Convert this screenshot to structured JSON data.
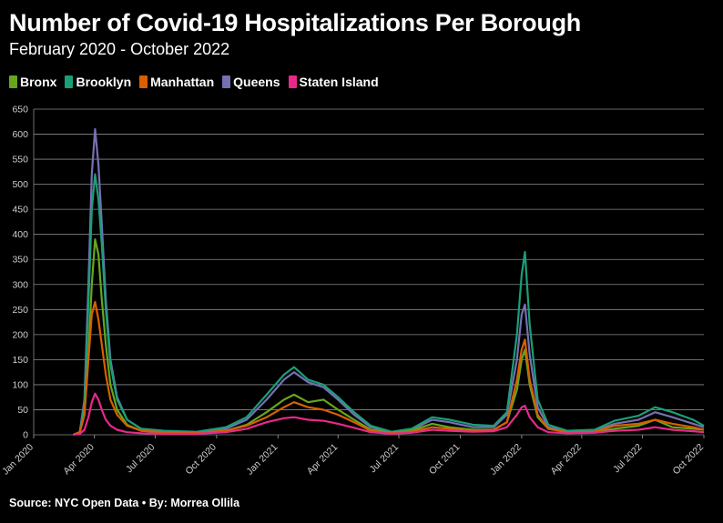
{
  "chart_data": {
    "type": "line",
    "title": "Number of Covid-19 Hospitalizations Per Borough",
    "subtitle": "February 2020 - October 2022",
    "source": "Source: NYC Open Data • By: Morrea Ollila",
    "xlabel": "",
    "ylabel": "",
    "ylim": [
      0,
      650
    ],
    "yticks": [
      0,
      50,
      100,
      150,
      200,
      250,
      300,
      350,
      400,
      450,
      500,
      550,
      600,
      650
    ],
    "xlim": [
      "2020-01-01",
      "2022-10-01"
    ],
    "xticks": [
      {
        "date": "2020-01-01",
        "label": "Jan 2020"
      },
      {
        "date": "2020-04-01",
        "label": "Apr 2020"
      },
      {
        "date": "2020-07-01",
        "label": "Jul 2020"
      },
      {
        "date": "2020-10-01",
        "label": "Oct 2020"
      },
      {
        "date": "2021-01-01",
        "label": "Jan 2021"
      },
      {
        "date": "2021-04-01",
        "label": "Apr 2021"
      },
      {
        "date": "2021-07-01",
        "label": "Jul 2021"
      },
      {
        "date": "2021-10-01",
        "label": "Oct 2021"
      },
      {
        "date": "2022-01-01",
        "label": "Jan 2022"
      },
      {
        "date": "2022-04-01",
        "label": "Apr 2022"
      },
      {
        "date": "2022-07-01",
        "label": "Jul 2022"
      },
      {
        "date": "2022-10-01",
        "label": "Oct 2022"
      }
    ],
    "grid": true,
    "legend_position": "top-left",
    "series": [
      {
        "name": "Bronx",
        "color": "#66a61e",
        "points": [
          [
            "2020-02-29",
            0
          ],
          [
            "2020-03-10",
            5
          ],
          [
            "2020-03-17",
            40
          ],
          [
            "2020-03-23",
            160
          ],
          [
            "2020-03-28",
            300
          ],
          [
            "2020-04-02",
            390
          ],
          [
            "2020-04-07",
            360
          ],
          [
            "2020-04-12",
            270
          ],
          [
            "2020-04-18",
            180
          ],
          [
            "2020-04-25",
            100
          ],
          [
            "2020-05-05",
            50
          ],
          [
            "2020-05-20",
            20
          ],
          [
            "2020-06-10",
            8
          ],
          [
            "2020-07-15",
            5
          ],
          [
            "2020-09-01",
            4
          ],
          [
            "2020-10-15",
            8
          ],
          [
            "2020-11-15",
            20
          ],
          [
            "2020-12-15",
            45
          ],
          [
            "2021-01-10",
            70
          ],
          [
            "2021-01-25",
            80
          ],
          [
            "2021-02-15",
            65
          ],
          [
            "2021-03-10",
            70
          ],
          [
            "2021-04-01",
            50
          ],
          [
            "2021-04-25",
            30
          ],
          [
            "2021-05-20",
            10
          ],
          [
            "2021-06-20",
            4
          ],
          [
            "2021-07-20",
            8
          ],
          [
            "2021-08-20",
            22
          ],
          [
            "2021-09-15",
            15
          ],
          [
            "2021-10-20",
            10
          ],
          [
            "2021-11-20",
            10
          ],
          [
            "2021-12-10",
            25
          ],
          [
            "2021-12-25",
            90
          ],
          [
            "2022-01-01",
            150
          ],
          [
            "2022-01-06",
            170
          ],
          [
            "2022-01-13",
            100
          ],
          [
            "2022-01-25",
            35
          ],
          [
            "2022-02-10",
            12
          ],
          [
            "2022-03-10",
            5
          ],
          [
            "2022-04-20",
            5
          ],
          [
            "2022-05-20",
            12
          ],
          [
            "2022-06-25",
            18
          ],
          [
            "2022-07-20",
            30
          ],
          [
            "2022-08-15",
            15
          ],
          [
            "2022-09-15",
            12
          ],
          [
            "2022-10-01",
            10
          ]
        ]
      },
      {
        "name": "Brooklyn",
        "color": "#1b9e77",
        "points": [
          [
            "2020-02-29",
            0
          ],
          [
            "2020-03-10",
            5
          ],
          [
            "2020-03-17",
            60
          ],
          [
            "2020-03-23",
            260
          ],
          [
            "2020-03-28",
            450
          ],
          [
            "2020-04-02",
            520
          ],
          [
            "2020-04-07",
            470
          ],
          [
            "2020-04-12",
            380
          ],
          [
            "2020-04-18",
            250
          ],
          [
            "2020-04-25",
            140
          ],
          [
            "2020-05-05",
            70
          ],
          [
            "2020-05-20",
            30
          ],
          [
            "2020-06-10",
            12
          ],
          [
            "2020-07-15",
            8
          ],
          [
            "2020-09-01",
            6
          ],
          [
            "2020-10-15",
            15
          ],
          [
            "2020-11-15",
            35
          ],
          [
            "2020-12-15",
            80
          ],
          [
            "2021-01-10",
            120
          ],
          [
            "2021-01-25",
            135
          ],
          [
            "2021-02-15",
            110
          ],
          [
            "2021-03-10",
            100
          ],
          [
            "2021-04-01",
            75
          ],
          [
            "2021-04-25",
            45
          ],
          [
            "2021-05-20",
            18
          ],
          [
            "2021-06-20",
            6
          ],
          [
            "2021-07-20",
            12
          ],
          [
            "2021-08-20",
            35
          ],
          [
            "2021-09-15",
            30
          ],
          [
            "2021-10-20",
            20
          ],
          [
            "2021-11-20",
            18
          ],
          [
            "2021-12-10",
            45
          ],
          [
            "2021-12-25",
            200
          ],
          [
            "2022-01-01",
            320
          ],
          [
            "2022-01-06",
            365
          ],
          [
            "2022-01-13",
            220
          ],
          [
            "2022-01-25",
            70
          ],
          [
            "2022-02-10",
            20
          ],
          [
            "2022-03-10",
            8
          ],
          [
            "2022-04-20",
            10
          ],
          [
            "2022-05-20",
            28
          ],
          [
            "2022-06-25",
            38
          ],
          [
            "2022-07-20",
            55
          ],
          [
            "2022-08-15",
            45
          ],
          [
            "2022-09-15",
            30
          ],
          [
            "2022-10-01",
            18
          ]
        ]
      },
      {
        "name": "Manhattan",
        "color": "#d95f02",
        "points": [
          [
            "2020-02-29",
            0
          ],
          [
            "2020-03-10",
            5
          ],
          [
            "2020-03-17",
            40
          ],
          [
            "2020-03-23",
            150
          ],
          [
            "2020-03-28",
            240
          ],
          [
            "2020-04-02",
            265
          ],
          [
            "2020-04-07",
            230
          ],
          [
            "2020-04-12",
            180
          ],
          [
            "2020-04-18",
            120
          ],
          [
            "2020-04-25",
            70
          ],
          [
            "2020-05-05",
            40
          ],
          [
            "2020-05-20",
            18
          ],
          [
            "2020-06-10",
            8
          ],
          [
            "2020-07-15",
            5
          ],
          [
            "2020-09-01",
            4
          ],
          [
            "2020-10-15",
            8
          ],
          [
            "2020-11-15",
            18
          ],
          [
            "2020-12-15",
            35
          ],
          [
            "2021-01-10",
            55
          ],
          [
            "2021-01-25",
            65
          ],
          [
            "2021-02-15",
            55
          ],
          [
            "2021-03-10",
            50
          ],
          [
            "2021-04-01",
            40
          ],
          [
            "2021-04-25",
            25
          ],
          [
            "2021-05-20",
            8
          ],
          [
            "2021-06-20",
            3
          ],
          [
            "2021-07-20",
            6
          ],
          [
            "2021-08-20",
            15
          ],
          [
            "2021-09-15",
            12
          ],
          [
            "2021-10-20",
            8
          ],
          [
            "2021-11-20",
            10
          ],
          [
            "2021-12-10",
            25
          ],
          [
            "2021-12-25",
            110
          ],
          [
            "2022-01-01",
            170
          ],
          [
            "2022-01-06",
            190
          ],
          [
            "2022-01-13",
            110
          ],
          [
            "2022-01-25",
            40
          ],
          [
            "2022-02-10",
            12
          ],
          [
            "2022-03-10",
            5
          ],
          [
            "2022-04-20",
            6
          ],
          [
            "2022-05-20",
            18
          ],
          [
            "2022-06-25",
            22
          ],
          [
            "2022-07-20",
            30
          ],
          [
            "2022-08-15",
            22
          ],
          [
            "2022-09-15",
            15
          ],
          [
            "2022-10-01",
            10
          ]
        ]
      },
      {
        "name": "Queens",
        "color": "#7570b3",
        "points": [
          [
            "2020-02-29",
            0
          ],
          [
            "2020-03-10",
            5
          ],
          [
            "2020-03-17",
            70
          ],
          [
            "2020-03-23",
            300
          ],
          [
            "2020-03-28",
            520
          ],
          [
            "2020-04-02",
            610
          ],
          [
            "2020-04-07",
            540
          ],
          [
            "2020-04-12",
            420
          ],
          [
            "2020-04-18",
            270
          ],
          [
            "2020-04-25",
            150
          ],
          [
            "2020-05-05",
            75
          ],
          [
            "2020-05-20",
            30
          ],
          [
            "2020-06-10",
            12
          ],
          [
            "2020-07-15",
            7
          ],
          [
            "2020-09-01",
            5
          ],
          [
            "2020-10-15",
            12
          ],
          [
            "2020-11-15",
            30
          ],
          [
            "2020-12-15",
            70
          ],
          [
            "2021-01-10",
            110
          ],
          [
            "2021-01-25",
            125
          ],
          [
            "2021-02-15",
            105
          ],
          [
            "2021-03-10",
            95
          ],
          [
            "2021-04-01",
            70
          ],
          [
            "2021-04-25",
            40
          ],
          [
            "2021-05-20",
            15
          ],
          [
            "2021-06-20",
            5
          ],
          [
            "2021-07-20",
            10
          ],
          [
            "2021-08-20",
            30
          ],
          [
            "2021-09-15",
            25
          ],
          [
            "2021-10-20",
            15
          ],
          [
            "2021-11-20",
            15
          ],
          [
            "2021-12-10",
            40
          ],
          [
            "2021-12-25",
            150
          ],
          [
            "2022-01-01",
            240
          ],
          [
            "2022-01-06",
            260
          ],
          [
            "2022-01-13",
            160
          ],
          [
            "2022-01-25",
            55
          ],
          [
            "2022-02-10",
            15
          ],
          [
            "2022-03-10",
            7
          ],
          [
            "2022-04-20",
            8
          ],
          [
            "2022-05-20",
            22
          ],
          [
            "2022-06-25",
            30
          ],
          [
            "2022-07-20",
            45
          ],
          [
            "2022-08-15",
            35
          ],
          [
            "2022-09-15",
            22
          ],
          [
            "2022-10-01",
            15
          ]
        ]
      },
      {
        "name": "Staten Island",
        "color": "#e7298a",
        "points": [
          [
            "2020-02-29",
            0
          ],
          [
            "2020-03-10",
            2
          ],
          [
            "2020-03-17",
            10
          ],
          [
            "2020-03-23",
            35
          ],
          [
            "2020-03-28",
            65
          ],
          [
            "2020-04-02",
            82
          ],
          [
            "2020-04-07",
            70
          ],
          [
            "2020-04-12",
            50
          ],
          [
            "2020-04-18",
            30
          ],
          [
            "2020-04-25",
            18
          ],
          [
            "2020-05-05",
            10
          ],
          [
            "2020-05-20",
            5
          ],
          [
            "2020-06-10",
            3
          ],
          [
            "2020-07-15",
            2
          ],
          [
            "2020-09-01",
            2
          ],
          [
            "2020-10-15",
            5
          ],
          [
            "2020-11-15",
            12
          ],
          [
            "2020-12-15",
            25
          ],
          [
            "2021-01-10",
            33
          ],
          [
            "2021-01-25",
            35
          ],
          [
            "2021-02-15",
            30
          ],
          [
            "2021-03-10",
            28
          ],
          [
            "2021-04-01",
            22
          ],
          [
            "2021-04-25",
            14
          ],
          [
            "2021-05-20",
            5
          ],
          [
            "2021-06-20",
            2
          ],
          [
            "2021-07-20",
            4
          ],
          [
            "2021-08-20",
            10
          ],
          [
            "2021-09-15",
            8
          ],
          [
            "2021-10-20",
            6
          ],
          [
            "2021-11-20",
            7
          ],
          [
            "2021-12-10",
            15
          ],
          [
            "2021-12-25",
            40
          ],
          [
            "2022-01-01",
            55
          ],
          [
            "2022-01-06",
            58
          ],
          [
            "2022-01-13",
            35
          ],
          [
            "2022-01-25",
            15
          ],
          [
            "2022-02-10",
            5
          ],
          [
            "2022-03-10",
            3
          ],
          [
            "2022-04-20",
            4
          ],
          [
            "2022-05-20",
            8
          ],
          [
            "2022-06-25",
            10
          ],
          [
            "2022-07-20",
            15
          ],
          [
            "2022-08-15",
            10
          ],
          [
            "2022-09-15",
            7
          ],
          [
            "2022-10-01",
            5
          ]
        ]
      }
    ]
  }
}
